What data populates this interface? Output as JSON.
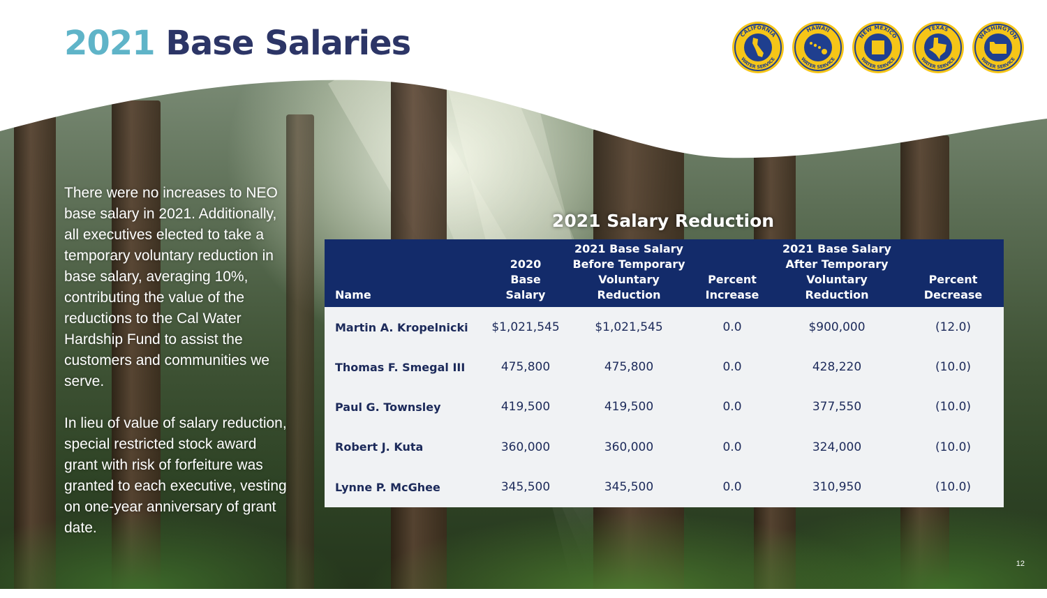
{
  "slide": {
    "title_year": "2021",
    "title_rest": "Base Salaries",
    "page_number": "12"
  },
  "logos": [
    {
      "name": "CALIFORNIA",
      "sub": "WATER SERVICE",
      "icon": "california-state-icon"
    },
    {
      "name": "HAWAII",
      "sub": "WATER SERVICE",
      "icon": "hawaii-state-icon"
    },
    {
      "name": "NEW MEXICO",
      "sub": "WATER SERVICE",
      "icon": "new-mexico-state-icon"
    },
    {
      "name": "TEXAS",
      "sub": "WATER SERVICE",
      "icon": "texas-state-icon"
    },
    {
      "name": "WASHINGTON",
      "sub": "WATER SERVICE",
      "icon": "washington-state-icon"
    }
  ],
  "body": {
    "paragraph1": "There were no increases to NEO base salary in 2021. Additionally, all executives elected to take a temporary voluntary reduction in base salary, averaging 10%, contributing the value of the reductions to the Cal Water Hardship Fund to assist the customers and communities we serve.",
    "paragraph2": "In lieu of value of salary reduction, special restricted stock award grant with risk of forfeiture was granted to each executive, vesting on one-year anniversary of grant date."
  },
  "table": {
    "title": "2021 Salary Reduction",
    "headers": {
      "name": "Name",
      "base2020_l1": "2020",
      "base2020_l2": "Base Salary",
      "before_l1": "2021 Base Salary",
      "before_l2": "Before Temporary",
      "before_l3": "Voluntary Reduction",
      "pct_inc_l1": "Percent",
      "pct_inc_l2": "Increase",
      "after_l1": "2021 Base Salary",
      "after_l2": "After Temporary",
      "after_l3": "Voluntary Reduction",
      "pct_dec_l1": "Percent",
      "pct_dec_l2": "Decrease"
    },
    "rows": [
      {
        "name": "Martin A. Kropelnicki",
        "base2020": "$1,021,545",
        "before": "$1,021,545",
        "pct_inc": "0.0",
        "after": "$900,000",
        "pct_dec": "(12.0)"
      },
      {
        "name": "Thomas F. Smegal III",
        "base2020": "475,800",
        "before": "475,800",
        "pct_inc": "0.0",
        "after": "428,220",
        "pct_dec": "(10.0)"
      },
      {
        "name": "Paul G. Townsley",
        "base2020": "419,500",
        "before": "419,500",
        "pct_inc": "0.0",
        "after": "377,550",
        "pct_dec": "(10.0)"
      },
      {
        "name": "Robert J. Kuta",
        "base2020": "360,000",
        "before": "360,000",
        "pct_inc": "0.0",
        "after": "324,000",
        "pct_dec": "(10.0)"
      },
      {
        "name": "Lynne P. McGhee",
        "base2020": "345,500",
        "before": "345,500",
        "pct_inc": "0.0",
        "after": "310,950",
        "pct_dec": "(10.0)"
      }
    ]
  },
  "colors": {
    "title_year": "#5fb4c8",
    "title_text": "#2c3566",
    "table_header_bg": "#132b6a",
    "table_body_bg": "#f0f2f4",
    "logo_gold": "#f5c518",
    "logo_blue": "#1f3f8f"
  }
}
